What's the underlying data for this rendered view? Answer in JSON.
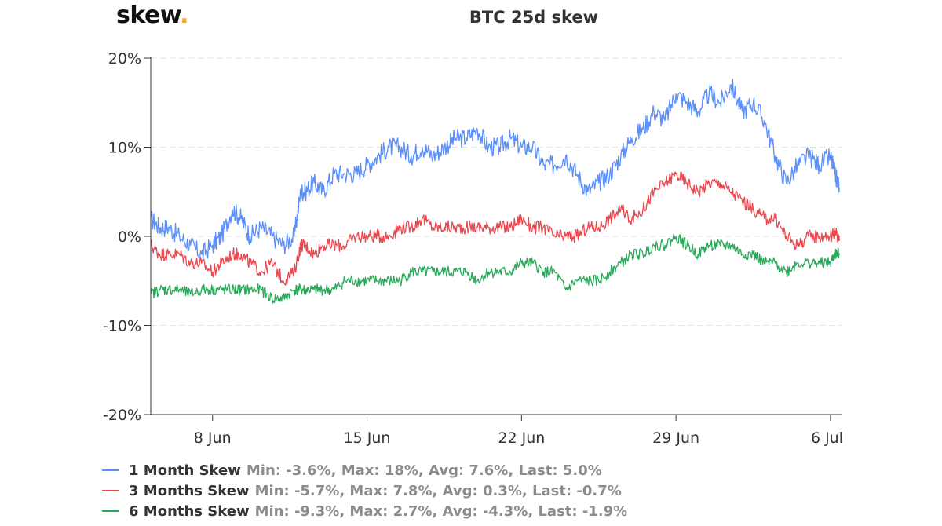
{
  "brand": {
    "name": "skew",
    "dot": "."
  },
  "chart_data": {
    "type": "line",
    "title": "BTC 25d skew",
    "y_axis": {
      "min": -20,
      "max": 20,
      "ticks": [
        20,
        10,
        0,
        -10,
        -20
      ],
      "tick_labels": [
        "20%",
        "10%",
        "0%",
        "-10%",
        "-20%"
      ],
      "grid": true
    },
    "x_axis": {
      "min": 5.2,
      "max": 36.5,
      "ticks": [
        8,
        15,
        22,
        29,
        36
      ],
      "tick_labels": [
        "8 Jun",
        "15 Jun",
        "22 Jun",
        "29 Jun",
        "6 Jul"
      ]
    },
    "series": [
      {
        "name": "1 Month Skew",
        "color": "#5b8ff9",
        "stats": "Min: -3.6%, Max: 18%, Avg: 7.6%, Last: 5.0%",
        "x": [
          5.2,
          5.6,
          6.0,
          6.5,
          7.0,
          7.5,
          8.0,
          8.4,
          8.9,
          9.3,
          9.7,
          10.2,
          10.7,
          11.2,
          11.7,
          12.0,
          12.2,
          12.6,
          13.0,
          13.5,
          14.0,
          14.5,
          15.0,
          15.5,
          16.0,
          16.5,
          17.0,
          17.5,
          18.0,
          18.5,
          19.0,
          19.5,
          20.0,
          20.5,
          21.0,
          21.5,
          22.0,
          22.5,
          23.0,
          23.5,
          24.0,
          24.5,
          25.0,
          25.5,
          26.0,
          26.5,
          27.0,
          27.5,
          28.0,
          28.5,
          29.0,
          29.5,
          30.0,
          30.5,
          31.0,
          31.5,
          32.0,
          32.5,
          33.0,
          33.5,
          34.0,
          34.5,
          35.0,
          35.5,
          36.0,
          36.2,
          36.4
        ],
        "values": [
          2,
          1,
          1,
          0,
          -1,
          -2,
          -1,
          0,
          3,
          2,
          0,
          1,
          0,
          -1,
          0,
          5,
          5,
          6,
          5,
          7,
          7,
          7,
          8,
          9,
          10,
          10,
          9,
          10,
          9,
          10,
          11,
          11,
          12,
          10,
          10,
          11,
          10,
          10,
          8,
          8,
          9,
          7,
          5,
          6,
          7,
          9,
          11,
          12,
          14,
          13,
          16,
          15,
          14,
          16,
          15,
          17,
          14,
          15,
          13,
          9,
          6,
          8,
          9,
          8,
          9,
          7,
          5.5
        ]
      },
      {
        "name": "3 Months Skew",
        "color": "#e8484f",
        "stats": "Min: -5.7%, Max: 7.8%, Avg: 0.3%, Last: -0.7%",
        "x": [
          5.2,
          5.6,
          6.0,
          6.5,
          7.0,
          7.5,
          8.0,
          8.4,
          8.9,
          9.3,
          9.7,
          10.2,
          10.7,
          11.2,
          11.7,
          12.0,
          12.2,
          12.6,
          13.0,
          13.5,
          14.0,
          14.5,
          15.0,
          15.5,
          16.0,
          16.5,
          17.0,
          17.5,
          18.0,
          18.5,
          19.0,
          19.5,
          20.0,
          20.5,
          21.0,
          21.5,
          22.0,
          22.5,
          23.0,
          23.5,
          24.0,
          24.5,
          25.0,
          25.5,
          26.0,
          26.5,
          27.0,
          27.5,
          28.0,
          28.5,
          29.0,
          29.5,
          30.0,
          30.5,
          31.0,
          31.5,
          32.0,
          32.5,
          33.0,
          33.5,
          34.0,
          34.5,
          35.0,
          35.5,
          36.0,
          36.2,
          36.4
        ],
        "values": [
          -1,
          -2,
          -2,
          -2,
          -3,
          -3,
          -4,
          -3,
          -2,
          -2,
          -3,
          -4,
          -3,
          -5,
          -4,
          -1,
          -1,
          -2,
          -1,
          -1,
          -1,
          0,
          0,
          0,
          0,
          1,
          1,
          2,
          1,
          1,
          1,
          1,
          1,
          1,
          1,
          1,
          2,
          1,
          1,
          0,
          0,
          0,
          1,
          1,
          2,
          3,
          2,
          3,
          5,
          6,
          7,
          6,
          5,
          6,
          6,
          5,
          4,
          3,
          2,
          2,
          0,
          -1,
          0,
          0,
          0,
          0.5,
          -0.5
        ]
      },
      {
        "name": "6 Months Skew",
        "color": "#2aa85a",
        "stats": "Min: -9.3%, Max: 2.7%, Avg: -4.3%, Last: -1.9%",
        "x": [
          5.2,
          5.6,
          6.0,
          6.5,
          7.0,
          7.5,
          8.0,
          8.4,
          8.9,
          9.3,
          9.7,
          10.2,
          10.7,
          11.2,
          11.7,
          12.0,
          12.2,
          12.6,
          13.0,
          13.5,
          14.0,
          14.5,
          15.0,
          15.5,
          16.0,
          16.5,
          17.0,
          17.5,
          18.0,
          18.5,
          19.0,
          19.5,
          20.0,
          20.5,
          21.0,
          21.5,
          22.0,
          22.5,
          23.0,
          23.5,
          24.0,
          24.5,
          25.0,
          25.5,
          26.0,
          26.5,
          27.0,
          27.5,
          28.0,
          28.5,
          29.0,
          29.5,
          30.0,
          30.5,
          31.0,
          31.5,
          32.0,
          32.5,
          33.0,
          33.5,
          34.0,
          34.5,
          35.0,
          35.5,
          36.0,
          36.2,
          36.4
        ],
        "values": [
          -6.5,
          -6,
          -6,
          -6,
          -6.5,
          -6,
          -6,
          -6,
          -6,
          -6,
          -6,
          -6,
          -7,
          -7,
          -6,
          -6,
          -6,
          -6,
          -6,
          -6,
          -5,
          -5,
          -5,
          -5,
          -5,
          -5,
          -4,
          -4,
          -4,
          -4,
          -4,
          -4,
          -5,
          -4,
          -4,
          -4,
          -3,
          -3,
          -4,
          -4,
          -6,
          -5,
          -5,
          -5,
          -4,
          -3,
          -2,
          -2,
          -1,
          -1,
          0,
          -1,
          -2,
          -1,
          -1,
          -1,
          -2,
          -2,
          -3,
          -3,
          -4,
          -3,
          -3,
          -3,
          -3,
          -2,
          -1.9
        ]
      }
    ]
  }
}
